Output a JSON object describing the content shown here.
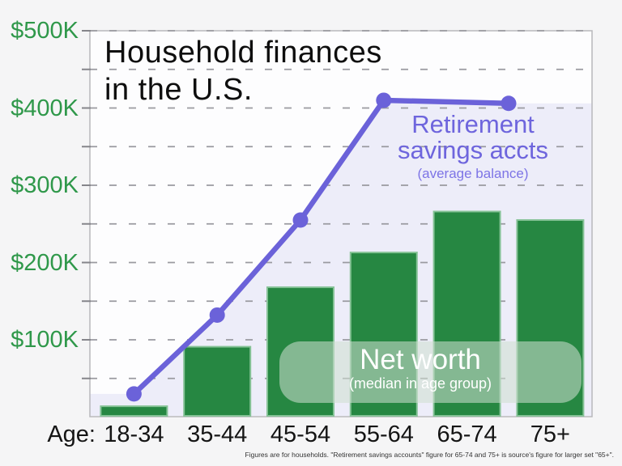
{
  "chart_data": {
    "type": "combo-bar-line",
    "title": "Household finances in the U.S.",
    "x_prefix_label": "Age:",
    "categories": [
      "18-34",
      "35-44",
      "45-54",
      "55-64",
      "65-74",
      "75+"
    ],
    "ylim": [
      0,
      500000
    ],
    "gridline_interval": 50000,
    "grid": "dashed horizontal every $50K",
    "legend_position": "inline annotations on plot",
    "y_tick_labels": [
      {
        "value": 500000,
        "label": "$500K"
      },
      {
        "value": 400000,
        "label": "$400K"
      },
      {
        "value": 300000,
        "label": "$300K"
      },
      {
        "value": 200000,
        "label": "$200K"
      },
      {
        "value": 100000,
        "label": "$100K"
      }
    ],
    "series": [
      {
        "name": "Net worth",
        "note": "(median in age group)",
        "type": "bar",
        "color": "#268742",
        "values": [
          14000,
          91000,
          168000,
          213000,
          266000,
          255000
        ]
      },
      {
        "name": "Retirement savings accts",
        "note": "(average balance)",
        "type": "line",
        "color": "#6b62d9",
        "area_fill": "#ededf9",
        "points": [
          {
            "x": "18-34",
            "pos": 0,
            "value": 30000
          },
          {
            "x": "35-44",
            "pos": 1,
            "value": 132000
          },
          {
            "x": "45-54",
            "pos": 2,
            "value": 255000
          },
          {
            "x": "55-64",
            "pos": 3,
            "value": 410000
          },
          {
            "x": "65+",
            "pos": 4.5,
            "value": 406000
          }
        ]
      }
    ]
  },
  "title": {
    "line1": "Household finances",
    "line2": "in the U.S."
  },
  "labels": {
    "retirement": {
      "line1": "Retirement",
      "line2": "savings accts",
      "sub": "(average balance)"
    },
    "net_worth": {
      "main": "Net worth",
      "sub": "(median in age group)"
    },
    "age_prefix": "Age:"
  },
  "footnote": "Figures are for households. \"Retirement savings accounts\" figure for 65-74 and 75+ is source's figure for larger set \"65+\".",
  "colors": {
    "bar_fill": "#268742",
    "bar_stroke": "#85c296",
    "line": "#6b62d9",
    "line_area_fill": "#ededf9",
    "axis_label_green": "#2f984a",
    "purple_text": "#6e65dd",
    "net_worth_overlay": "rgba(206,223,208,0.56)",
    "gridline": "#9a9aa0",
    "tick": "#85858a",
    "plot_bg": "#fdfdfe",
    "page_bg": "#f5f5f6",
    "frame": "#b8b8bc"
  }
}
